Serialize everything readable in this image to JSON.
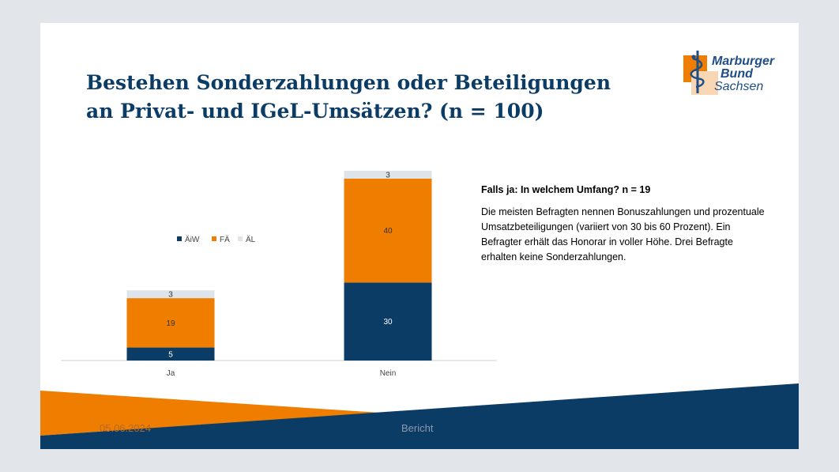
{
  "slide": {
    "title_line1": "Bestehen Sonderzahlungen oder Beteiligungen",
    "title_line2": "an Privat- und IGeL-Umsätzen? (n = 100)"
  },
  "logo": {
    "line1": "Marburger",
    "line2": "Bund",
    "line3": "Sachsen"
  },
  "info": {
    "heading": "Falls ja: In welchem Umfang? n = 19",
    "body": "Die meisten Befragten nennen Bonuszahlungen und prozentuale Umsatzbeteiligungen  (variiert von 30 bis 60 Prozent). Ein Befragter erhält das Honorar in voller Höhe. Drei Befragte erhalten keine Sonderzahlungen."
  },
  "footer": {
    "date": "05.06.2024",
    "label": "Bericht"
  },
  "colors": {
    "navy": "#0b3c66",
    "orange": "#ef7d00",
    "light": "#dde5ea"
  },
  "chart_data": {
    "type": "bar",
    "stacked": true,
    "categories": [
      "Ja",
      "Nein"
    ],
    "series": [
      {
        "name": "ÄiW",
        "values": [
          5,
          30
        ],
        "color": "#0b3c66"
      },
      {
        "name": "FÄ",
        "values": [
          19,
          40
        ],
        "color": "#ef7d00"
      },
      {
        "name": "ÄL",
        "values": [
          3,
          3
        ],
        "color": "#dde5ea"
      }
    ],
    "ylim": [
      0,
      73
    ],
    "legend_position": "left-middle",
    "grid": false
  }
}
